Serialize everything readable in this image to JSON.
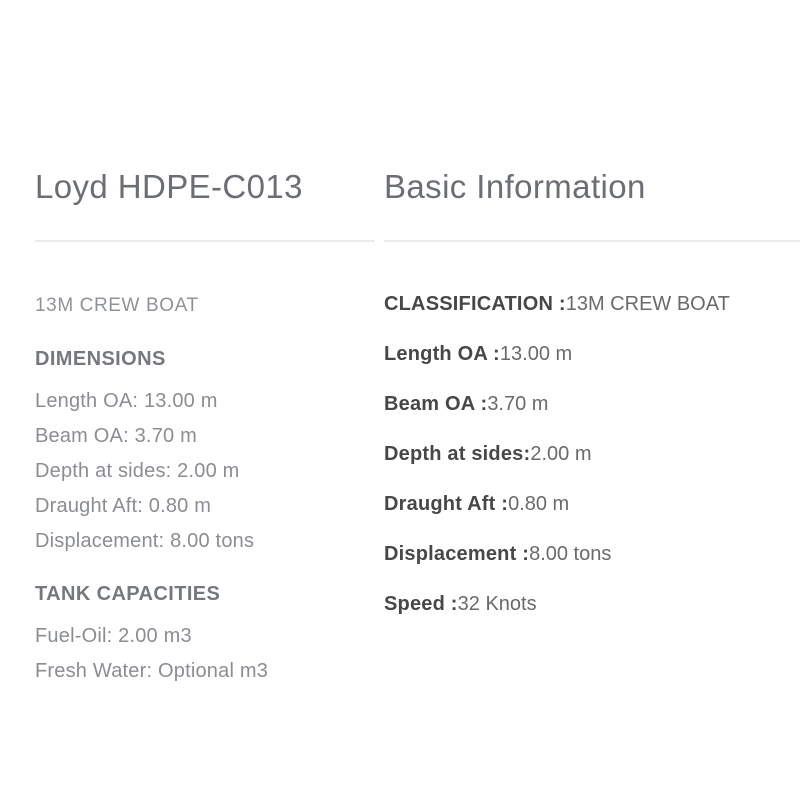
{
  "left_panel": {
    "title": "Loyd HDPE-C013",
    "subtitle": "13M CREW BOAT",
    "sections": [
      {
        "heading": "DIMENSIONS",
        "lines": [
          "Length OA: 13.00 m",
          "Beam OA: 3.70 m",
          "Depth at sides: 2.00 m",
          "Draught Aft: 0.80 m",
          "Displacement: 8.00 tons"
        ]
      },
      {
        "heading": "TANK CAPACITIES",
        "lines": [
          "Fuel-Oil: 2.00 m3",
          "Fresh Water: Optional m3"
        ]
      }
    ]
  },
  "right_panel": {
    "title": "Basic Information",
    "specs": [
      {
        "label": "CLASSIFICATION :",
        "value": "13M CREW BOAT"
      },
      {
        "label": "Length OA :",
        "value": "13.00 m"
      },
      {
        "label": "Beam OA :",
        "value": "3.70 m"
      },
      {
        "label": "Depth at sides:",
        "value": "2.00 m"
      },
      {
        "label": "Draught Aft :",
        "value": "0.80 m"
      },
      {
        "label": "Displacement :",
        "value": "8.00 tons"
      },
      {
        "label": "Speed :",
        "value": "32 Knots"
      }
    ]
  },
  "colors": {
    "background": "#ffffff",
    "heading_text": "#6b6f74",
    "divider": "#ececec",
    "subtitle_text": "#8f9397",
    "section_heading_text": "#75797d",
    "body_text": "#8a8d91",
    "spec_label_text": "#474747",
    "spec_value_text": "#6a6a6a"
  }
}
